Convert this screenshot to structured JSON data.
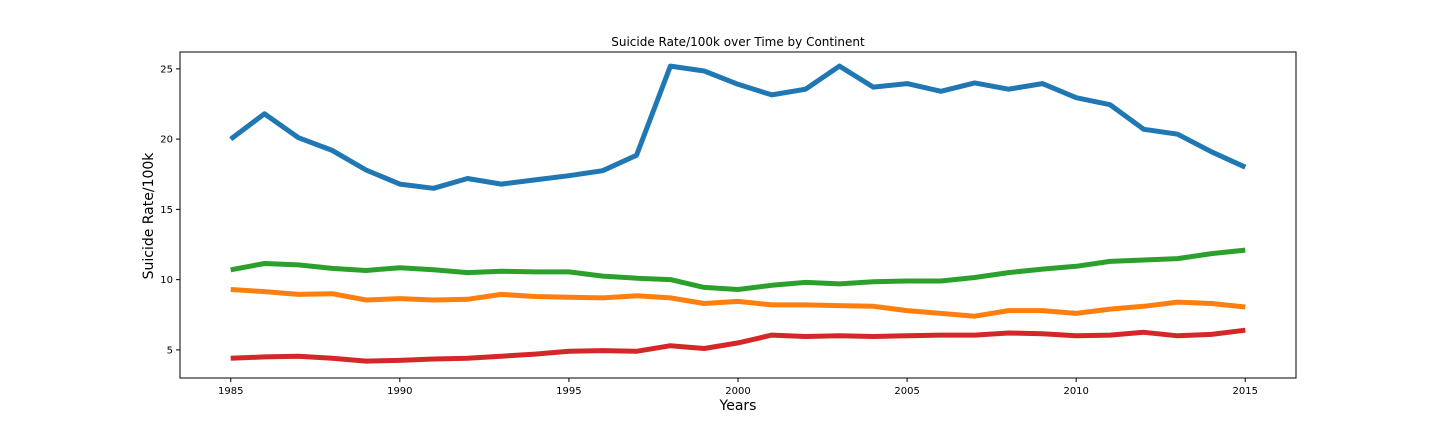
{
  "chart_data": {
    "type": "line",
    "title": "Suicide Rate/100k over Time by Continent",
    "xlabel": "Years",
    "ylabel": "Suicide Rate/100k",
    "xlim": [
      1983.5,
      2016.5
    ],
    "ylim": [
      3.0,
      26.2
    ],
    "xticks": [
      1985,
      1990,
      1995,
      2000,
      2005,
      2010,
      2015
    ],
    "yticks": [
      5,
      10,
      15,
      20,
      25
    ],
    "grid": false,
    "x": [
      1985,
      1986,
      1987,
      1988,
      1989,
      1990,
      1991,
      1992,
      1993,
      1994,
      1995,
      1996,
      1997,
      1998,
      1999,
      2000,
      2001,
      2002,
      2003,
      2004,
      2005,
      2006,
      2007,
      2008,
      2009,
      2010,
      2011,
      2012,
      2013,
      2014,
      2015
    ],
    "series": [
      {
        "color": "#1f77b4",
        "values": [
          20.0,
          21.8,
          20.1,
          19.2,
          17.8,
          16.8,
          16.5,
          17.2,
          16.8,
          17.1,
          17.4,
          17.75,
          18.85,
          25.2,
          24.85,
          23.9,
          23.15,
          23.55,
          25.2,
          23.7,
          23.95,
          23.4,
          24.0,
          23.55,
          23.95,
          22.95,
          22.45,
          20.7,
          20.35,
          19.1,
          18.0
        ]
      },
      {
        "color": "#ff7f0e",
        "values": [
          9.3,
          9.15,
          8.95,
          9.0,
          8.55,
          8.65,
          8.55,
          8.6,
          8.95,
          8.8,
          8.75,
          8.7,
          8.85,
          8.7,
          8.3,
          8.45,
          8.2,
          8.2,
          8.15,
          8.1,
          7.8,
          7.6,
          7.4,
          7.8,
          7.8,
          7.6,
          7.9,
          8.1,
          8.4,
          8.3,
          8.05
        ]
      },
      {
        "color": "#2ca02c",
        "values": [
          10.7,
          11.15,
          11.05,
          10.8,
          10.65,
          10.85,
          10.7,
          10.5,
          10.6,
          10.55,
          10.55,
          10.25,
          10.1,
          10.0,
          9.45,
          9.3,
          9.6,
          9.8,
          9.7,
          9.85,
          9.9,
          9.9,
          10.15,
          10.5,
          10.75,
          10.95,
          11.3,
          11.4,
          11.5,
          11.85,
          12.1
        ]
      },
      {
        "color": "#d62728",
        "values": [
          4.4,
          4.5,
          4.55,
          4.4,
          4.2,
          4.25,
          4.35,
          4.4,
          4.55,
          4.7,
          4.9,
          4.95,
          4.9,
          5.3,
          5.1,
          5.5,
          6.05,
          5.95,
          6.0,
          5.95,
          6.0,
          6.05,
          6.05,
          6.2,
          6.15,
          6.0,
          6.05,
          6.25,
          6.0,
          6.1,
          6.4
        ]
      }
    ]
  }
}
